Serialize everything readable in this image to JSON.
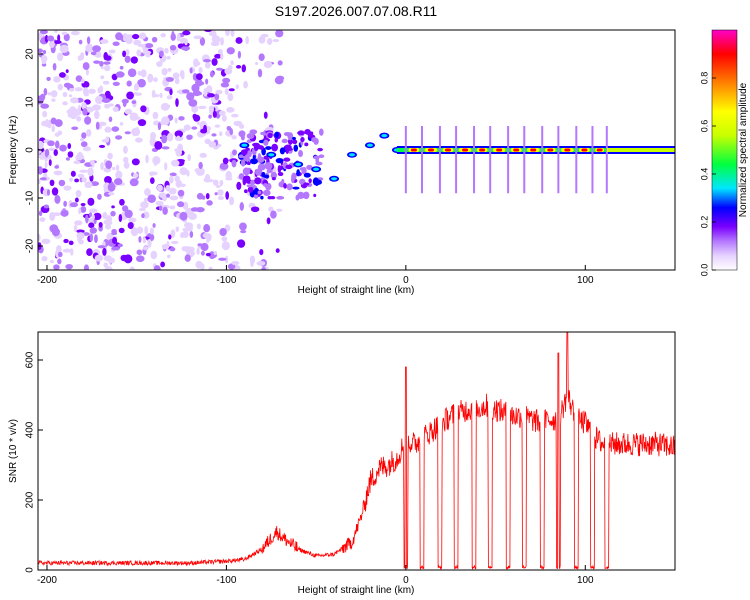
{
  "chart_data": [
    {
      "type": "heatmap",
      "title": "S197.2026.007.07.08.R11",
      "xlabel": "Height of straight line (km)",
      "ylabel": "Frequency (Hz)",
      "xlim": [
        -205,
        150
      ],
      "ylim": [
        -25,
        25
      ],
      "xticks": [
        -200,
        -100,
        0,
        100
      ],
      "xtick_labels": [
        "-200",
        "-100",
        "0",
        "100"
      ],
      "yticks": [
        -20,
        -10,
        0,
        10,
        20
      ],
      "ytick_labels": [
        "-20",
        "-10",
        "0",
        "10",
        "20"
      ],
      "colorbar": {
        "label": "Normalized spectral amplitude",
        "range": [
          0,
          1
        ],
        "ticks": [
          0,
          0.2,
          0.4,
          0.6,
          0.8
        ],
        "tick_labels": [
          "0.0",
          "0.2",
          "0.4",
          "0.6",
          "0.8"
        ],
        "colors": [
          "#ffffff",
          "#e6d2ff",
          "#b478ff",
          "#7a00ff",
          "#0000ff",
          "#00e6ff",
          "#00ff40",
          "#c8ff00",
          "#ffff00",
          "#ff8000",
          "#ff0000",
          "#ff00c8"
        ]
      },
      "description_values": {
        "noise_region_km": [
          -205,
          -95
        ],
        "descent_track": [
          [
            -90,
            1
          ],
          [
            -75,
            -1
          ],
          [
            -60,
            -3
          ],
          [
            -50,
            -4
          ],
          [
            -40,
            -6
          ],
          [
            -30,
            -1
          ],
          [
            -20,
            1
          ],
          [
            -12,
            3
          ],
          [
            -5,
            0
          ]
        ],
        "steady_track_freq_hz": 0,
        "steady_track_km": [
          -5,
          150
        ]
      }
    },
    {
      "type": "line",
      "xlabel": "Height of straight line (km)",
      "ylabel": "SNR (10 * v/v)",
      "xlim": [
        -205,
        150
      ],
      "ylim": [
        0,
        680
      ],
      "xticks": [
        -200,
        -100,
        0,
        100
      ],
      "xtick_labels": [
        "-200",
        "-100",
        "0",
        "100"
      ],
      "yticks": [
        0,
        200,
        400,
        600
      ],
      "ytick_labels": [
        "0",
        "200",
        "400",
        "600"
      ],
      "line_color": "#ff0000",
      "series": [
        {
          "name": "SNR",
          "x": [
            -205,
            -180,
            -150,
            -120,
            -100,
            -90,
            -80,
            -72,
            -68,
            -60,
            -50,
            -40,
            -30,
            -25,
            -20,
            -15,
            -10,
            -5,
            0,
            5,
            10,
            15,
            20,
            25,
            30,
            35,
            40,
            45,
            50,
            55,
            60,
            65,
            70,
            75,
            80,
            85,
            88,
            90,
            95,
            100,
            105,
            110,
            115,
            120,
            130,
            140,
            150
          ],
          "y": [
            20,
            20,
            20,
            20,
            25,
            30,
            60,
            110,
            90,
            60,
            40,
            45,
            80,
            150,
            250,
            290,
            300,
            320,
            370,
            360,
            380,
            400,
            420,
            440,
            450,
            460,
            460,
            470,
            460,
            450,
            440,
            440,
            430,
            420,
            430,
            430,
            470,
            500,
            430,
            420,
            380,
            360,
            360,
            360,
            360,
            360,
            350
          ]
        }
      ],
      "dropouts_km": [
        0,
        9,
        19,
        28,
        38,
        47,
        57,
        66,
        76,
        85,
        95,
        104,
        112
      ],
      "spikes": [
        [
          0,
          580
        ],
        [
          90,
          680
        ],
        [
          85,
          620
        ]
      ]
    }
  ]
}
